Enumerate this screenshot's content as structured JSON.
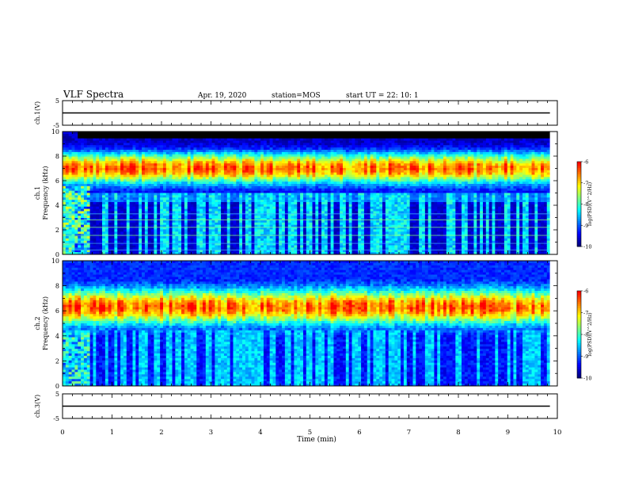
{
  "header": {
    "title": "VLF Spectra",
    "date": "Apr. 19, 2020",
    "station": "station=MOS",
    "start": "start  UT  =   22: 10: 1"
  },
  "colors": {
    "scale": [
      "#00007f",
      "#0000ff",
      "#0080ff",
      "#00ffff",
      "#80ff80",
      "#ffff00",
      "#ff8000",
      "#ff0000",
      "#ffffff"
    ],
    "line": "#000000"
  },
  "chart_data": [
    {
      "type": "line",
      "ylabel": "ch.1(V)",
      "ylim": [
        -5,
        5
      ],
      "yticks": [
        "5",
        "-5"
      ],
      "xlim": [
        0,
        10
      ],
      "x": [
        0,
        9.85
      ],
      "y": [
        0,
        0
      ]
    },
    {
      "type": "heatmap",
      "ylabel": "ch.1\nFrequency (kHz)",
      "ylim": [
        0,
        10
      ],
      "yticks": [
        "0",
        "2",
        "4",
        "6",
        "8",
        "10"
      ],
      "xlim": [
        0,
        10
      ],
      "data_end_min": 9.85,
      "emission_band_khz": [
        5.0,
        8.5
      ],
      "peak_khz": 7.0,
      "background_band_khz": [
        0,
        4.2
      ],
      "saturated_above_khz": 9.5,
      "colorbar": {
        "label": "log(PSD)(V^2/Hz)",
        "ticks": [
          "-6",
          "-7",
          "-8",
          "-9",
          "-10"
        ],
        "range": [
          -10,
          -6
        ]
      }
    },
    {
      "type": "heatmap",
      "ylabel": "ch.2\nFrequency (kHz)",
      "ylim": [
        0,
        10
      ],
      "yticks": [
        "0",
        "2",
        "4",
        "6",
        "8",
        "10"
      ],
      "xlim": [
        0,
        10
      ],
      "data_end_min": 9.85,
      "emission_band_khz": [
        4.2,
        8.5
      ],
      "peak_khz": 6.3,
      "colorbar": {
        "label": "log(PSD)(V^2/Hz)",
        "ticks": [
          "-6",
          "-7",
          "-8",
          "-9",
          "-10"
        ],
        "range": [
          -10,
          -6
        ]
      }
    },
    {
      "type": "line",
      "ylabel": "ch.3(V)",
      "ylim": [
        -5,
        5
      ],
      "yticks": [
        "5",
        "-5"
      ],
      "xlim": [
        0,
        10
      ],
      "x": [
        0,
        9.85
      ],
      "y": [
        0,
        0
      ]
    }
  ],
  "xaxis": {
    "label": "Time  (min)",
    "ticks": [
      "0",
      "1",
      "2",
      "3",
      "4",
      "5",
      "6",
      "7",
      "8",
      "9",
      "10"
    ]
  }
}
